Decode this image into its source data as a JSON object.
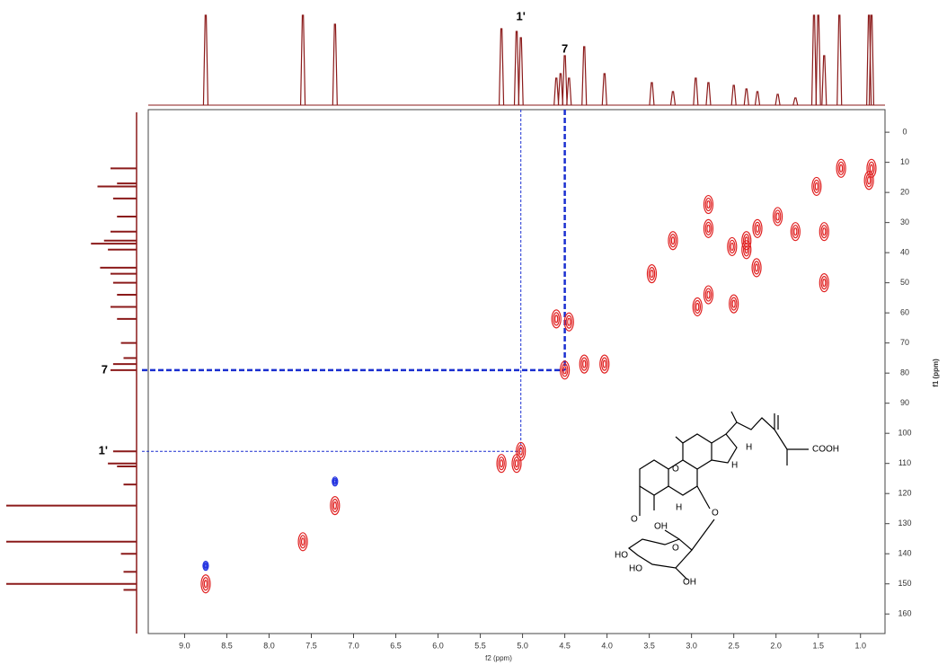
{
  "chart_data": {
    "type": "hsqc",
    "x_label": "f2 (ppm)",
    "y_label": "f1 (ppm)",
    "xlim": [
      9.43,
      0.71
    ],
    "ylim": [
      -7.5,
      166.5
    ],
    "y_inverted": true,
    "xticks": [
      {
        "value": 9,
        "label": "9.0"
      },
      {
        "value": 8.5,
        "label": "8.5"
      },
      {
        "value": 8,
        "label": "8.0"
      },
      {
        "value": 7.5,
        "label": "7.5"
      },
      {
        "value": 7,
        "label": "7.0"
      },
      {
        "value": 6.5,
        "label": "6.5"
      },
      {
        "value": 6,
        "label": "6.0"
      },
      {
        "value": 5.5,
        "label": "5.5"
      },
      {
        "value": 5,
        "label": "5.0"
      },
      {
        "value": 4.5,
        "label": "4.5"
      },
      {
        "value": 4,
        "label": "4.0"
      },
      {
        "value": 3.5,
        "label": "3.5"
      },
      {
        "value": 3,
        "label": "3.0"
      },
      {
        "value": 2.5,
        "label": "2.5"
      },
      {
        "value": 2,
        "label": "2.0"
      },
      {
        "value": 1.5,
        "label": "1.5"
      },
      {
        "value": 1,
        "label": "1.0"
      }
    ],
    "yticks": [
      0,
      10,
      20,
      30,
      40,
      50,
      60,
      70,
      80,
      90,
      100,
      110,
      120,
      130,
      140,
      150,
      160
    ],
    "series": [
      {
        "color": "#e02020",
        "x": [
          8.75,
          7.6,
          7.22,
          5.25,
          5.07,
          5.02,
          4.6,
          4.45,
          4.5,
          4.27,
          4.03,
          3.47,
          3.22,
          2.93,
          2.8,
          2.8,
          2.8,
          2.5,
          2.52,
          2.35,
          2.35,
          2.22,
          2.23,
          1.98,
          1.77,
          1.52,
          1.43,
          1.43,
          1.23,
          0.9,
          0.87
        ],
        "y": [
          150,
          136,
          124,
          110,
          110,
          106,
          62,
          63,
          79,
          77,
          77,
          47,
          36,
          58,
          54,
          32,
          24,
          57,
          38,
          36,
          39,
          32,
          45,
          28,
          33,
          18,
          33,
          50,
          12,
          16,
          12
        ]
      },
      {
        "color": "#2030e0",
        "x": [
          8.75,
          7.22
        ],
        "y": [
          144,
          116
        ]
      }
    ],
    "h1_spectrum": {
      "color": "#8b1a1a",
      "x": [
        8.75,
        7.6,
        7.22,
        5.25,
        5.07,
        5.02,
        4.6,
        4.55,
        4.45,
        4.5,
        4.27,
        4.03,
        3.47,
        3.22,
        2.95,
        2.8,
        2.5,
        2.35,
        2.22,
        1.98,
        1.77,
        1.55,
        1.5,
        1.43,
        1.25,
        0.9,
        0.87
      ],
      "intensity": [
        100,
        100,
        90,
        85,
        82,
        75,
        30,
        35,
        30,
        55,
        65,
        35,
        25,
        15,
        30,
        25,
        22,
        18,
        15,
        12,
        8,
        100,
        100,
        55,
        100,
        100,
        100
      ]
    },
    "c13_spectrum": {
      "color": "#8b1a1a",
      "y": [
        12,
        17,
        18,
        22,
        28,
        33,
        36,
        37,
        39,
        45,
        47,
        50,
        54,
        58,
        62,
        70,
        75,
        77,
        79,
        106,
        110,
        111,
        117,
        124,
        136,
        140,
        146,
        150,
        152
      ],
      "intensity": [
        20,
        15,
        30,
        18,
        15,
        20,
        25,
        35,
        22,
        28,
        20,
        18,
        15,
        20,
        15,
        12,
        10,
        18,
        20,
        18,
        22,
        15,
        10,
        100,
        100,
        12,
        10,
        100,
        10
      ]
    },
    "annotations": [
      {
        "label": "1'",
        "x": 5.02,
        "y": 106
      },
      {
        "label": "7",
        "x": 4.5,
        "y": 79
      }
    ],
    "structure_labels": [
      "O",
      "O",
      "H",
      "H",
      "H",
      "O",
      "COOH",
      "OH",
      "HO",
      "HO",
      "OH",
      "O"
    ]
  }
}
